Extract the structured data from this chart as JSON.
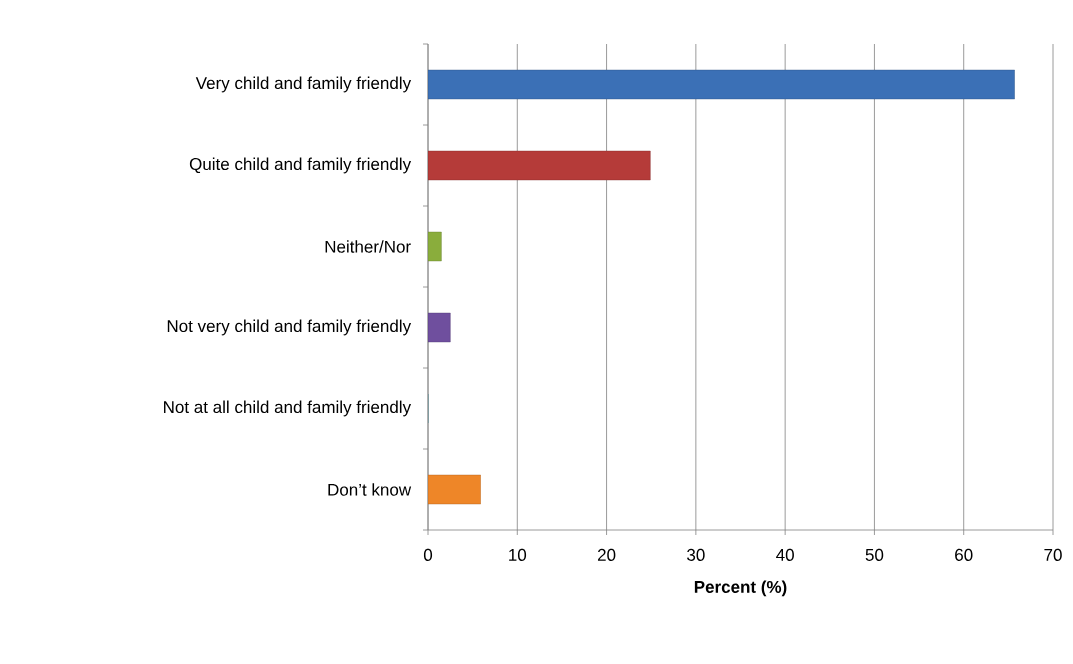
{
  "chart_data": {
    "type": "bar",
    "orientation": "horizontal",
    "categories": [
      "Very child and family friendly",
      "Quite child and family friendly",
      "Neither/Nor",
      "Not very child and family friendly",
      "Not at all child and family friendly",
      "Don’t know"
    ],
    "values": [
      65.7,
      24.9,
      1.5,
      2.5,
      0,
      5.9
    ],
    "colors": [
      "#3b70b6",
      "#b53b39",
      "#8aad3c",
      "#6f4f9e",
      "#4bacc6",
      "#ee8628"
    ],
    "xlabel": "Percent (%)",
    "xlim": [
      0,
      70
    ],
    "xticks": [
      0,
      10,
      20,
      30,
      40,
      50,
      60,
      70
    ],
    "grid": "x"
  }
}
